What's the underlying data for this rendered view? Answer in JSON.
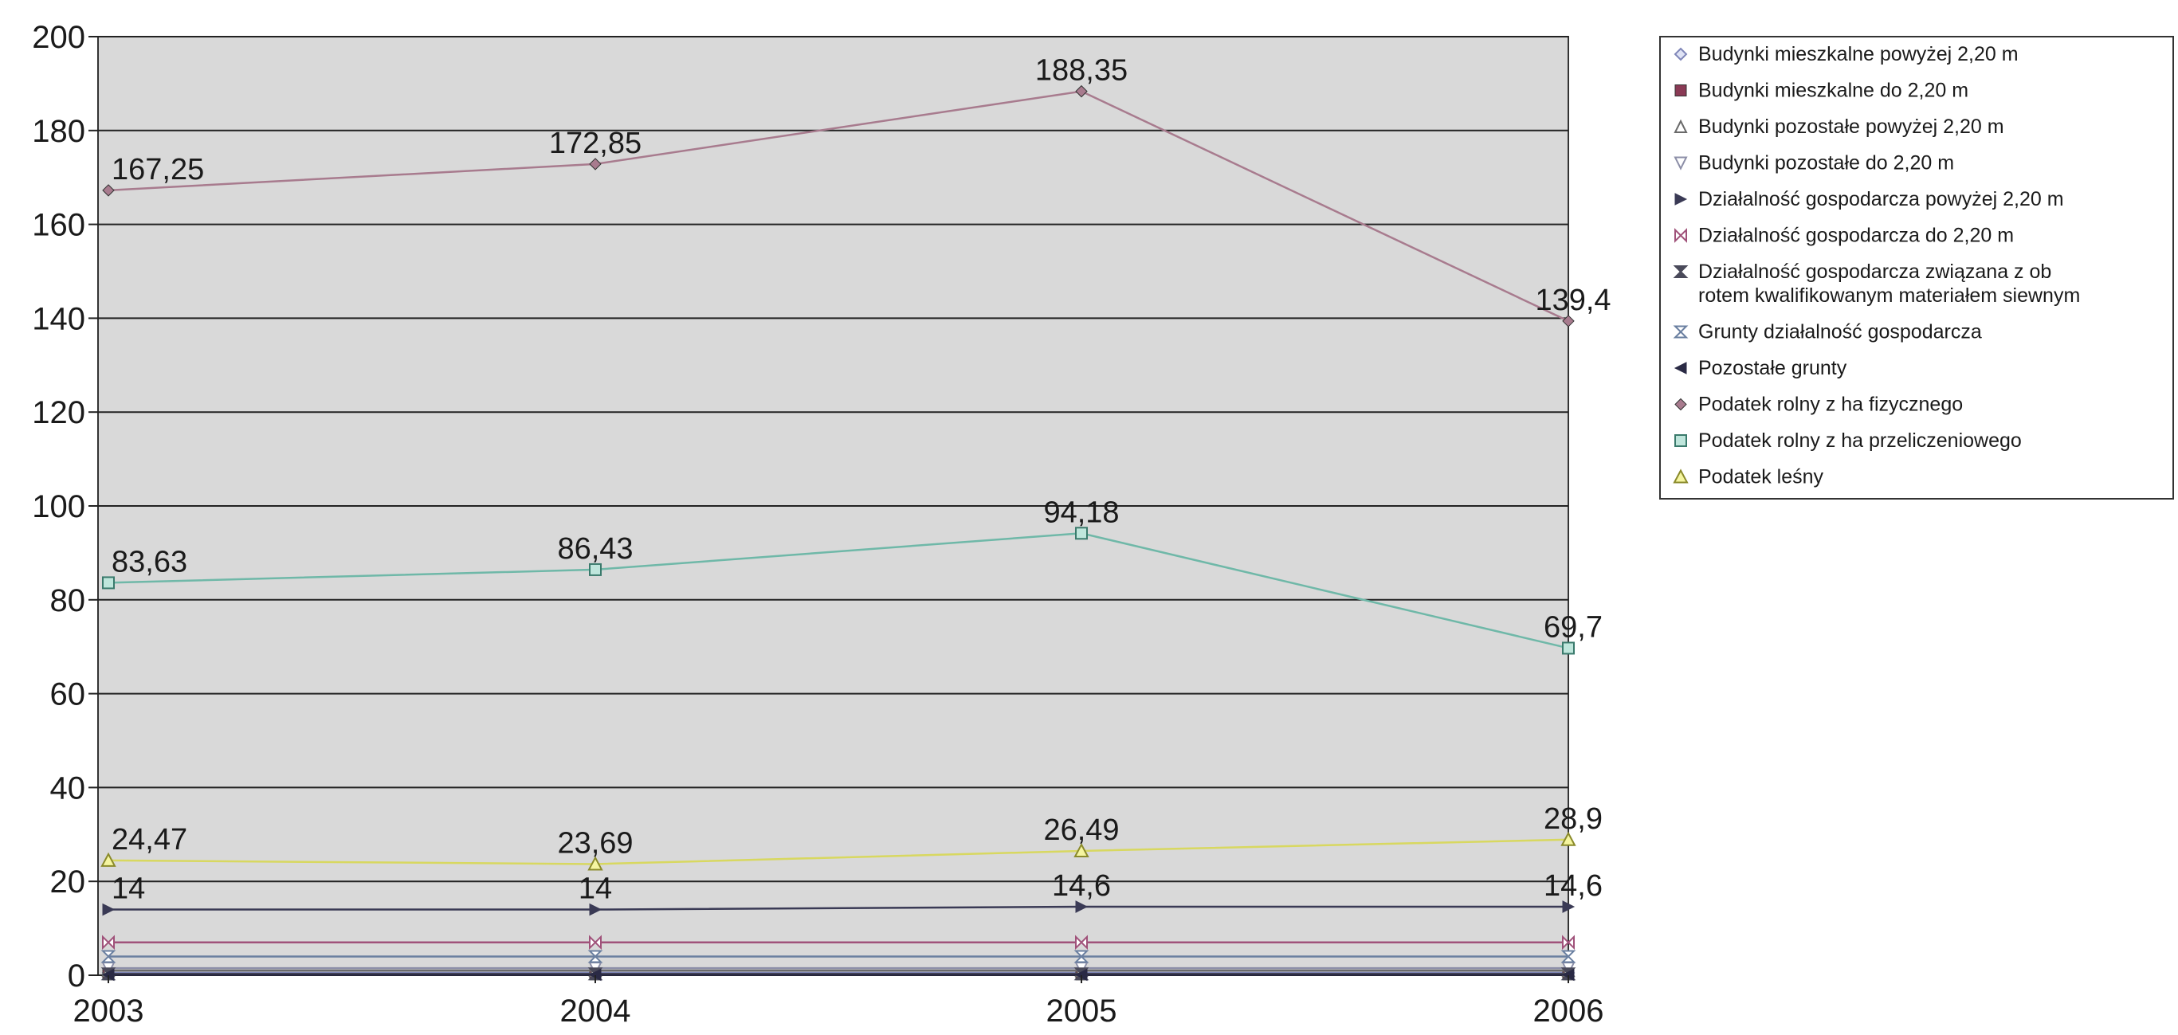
{
  "chart_data": {
    "type": "line",
    "title": "",
    "xlabel": "",
    "ylabel": "",
    "categories": [
      "2003",
      "2004",
      "2005",
      "2006"
    ],
    "ylim": [
      0,
      200
    ],
    "yticks": [
      0,
      20,
      40,
      60,
      80,
      100,
      120,
      140,
      160,
      180,
      200
    ],
    "grid": true,
    "legend_position": "right",
    "plot_background": "#d9d9d9",
    "series": [
      {
        "name": "Budynki mieszkalne powyżej 2,20 m",
        "values": [
          0.5,
          0.5,
          0.5,
          0.5
        ],
        "color": "#7f86b8",
        "marker": "diamond-open",
        "labels": [
          "",
          "",
          "",
          ""
        ]
      },
      {
        "name": "Budynki mieszkalne do 2,20 m",
        "values": [
          0.2,
          0.2,
          0.2,
          0.2
        ],
        "color": "#8a3a55",
        "marker": "square-filled",
        "labels": [
          "",
          "",
          "",
          ""
        ]
      },
      {
        "name": "Budynki pozostałe powyżej 2,20 m",
        "values": [
          1,
          1,
          1,
          1
        ],
        "color": "#6a6a6a",
        "marker": "triangle-open",
        "labels": [
          "",
          "",
          "",
          ""
        ]
      },
      {
        "name": "Budynki pozostałe do 2,20 m",
        "values": [
          1.5,
          1.5,
          1.5,
          1.5
        ],
        "color": "#8d8fa8",
        "marker": "triangle-down-open",
        "labels": [
          "",
          "",
          "",
          ""
        ]
      },
      {
        "name": "Działalność gospodarcza powyżej 2,20 m",
        "values": [
          14,
          14,
          14.6,
          14.6
        ],
        "color": "#3a3a55",
        "marker": "triangle-right",
        "labels": [
          "14",
          "14",
          "14,6",
          "14,6"
        ]
      },
      {
        "name": "Działalność gospodarcza do 2,20 m",
        "values": [
          7,
          7,
          7,
          7
        ],
        "color": "#a0527a",
        "marker": "bowtie",
        "labels": [
          "",
          "",
          "",
          ""
        ]
      },
      {
        "name": "Działalność gospodarcza związana z ob rotem kwalifikowanym materiałem siewnym",
        "values": [
          0.3,
          0.3,
          0.3,
          0.3
        ],
        "color": "#4a4a5a",
        "marker": "hourglass",
        "labels": [
          "",
          "",
          "",
          ""
        ]
      },
      {
        "name": "Grunty działalność gospodarcza",
        "values": [
          4,
          4,
          4,
          4
        ],
        "color": "#6a7fa0",
        "marker": "hourglass-open",
        "labels": [
          "",
          "",
          "",
          ""
        ]
      },
      {
        "name": "Pozostałe grunty",
        "values": [
          0.1,
          0.1,
          0.1,
          0.1
        ],
        "color": "#2a2a45",
        "marker": "triangle-left",
        "labels": [
          "",
          "",
          "",
          ""
        ]
      },
      {
        "name": "Podatek rolny z ha fizycznego",
        "values": [
          167.25,
          172.85,
          188.35,
          139.4
        ],
        "color": "#a87b8e",
        "marker": "diamond",
        "labels": [
          "167,25",
          "172,85",
          "188,35",
          "139,4"
        ]
      },
      {
        "name": "Podatek rolny z ha przeliczeniowego",
        "values": [
          83.63,
          86.43,
          94.18,
          69.7
        ],
        "color": "#6fb8a8",
        "marker": "square-open",
        "labels": [
          "83,63",
          "86,43",
          "94,18",
          "69,7"
        ]
      },
      {
        "name": "Podatek leśny",
        "values": [
          24.47,
          23.69,
          26.49,
          28.9
        ],
        "color": "#d8d860",
        "marker": "triangle-open-yellow",
        "labels": [
          "24,47",
          "23,69",
          "26,49",
          "28,9"
        ]
      }
    ]
  }
}
